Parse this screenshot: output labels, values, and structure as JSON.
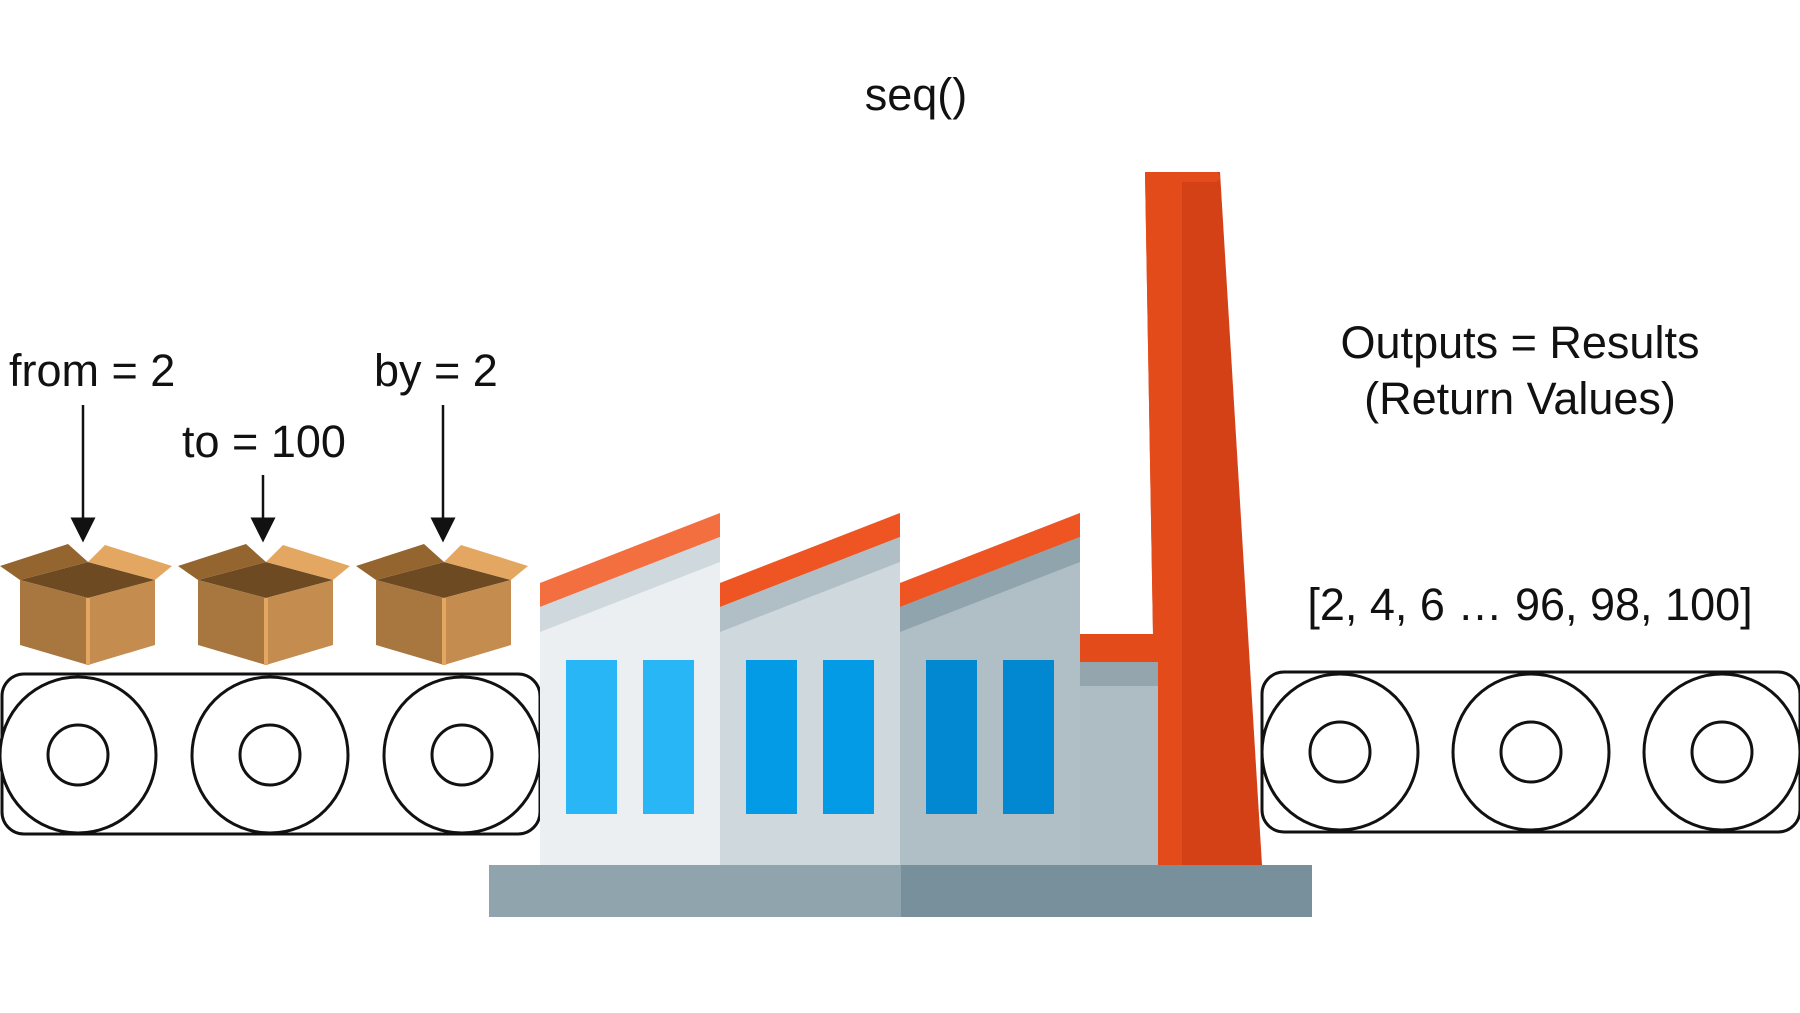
{
  "title": "seq()",
  "inputs": {
    "from_label": "from = 2",
    "to_label": "to = 100",
    "by_label": "by = 2"
  },
  "outputs": {
    "heading_line1": "Outputs = Results",
    "heading_line2": "(Return Values)",
    "result_sequence": "[2, 4, 6 … 96, 98, 100]"
  },
  "colors": {
    "box_brown": "#a8773f",
    "chimney_orange": "#e04a1b",
    "roof_orange": "#f0572a",
    "window_blue": "#1ea3e6",
    "base_gray": "#8fa2ad"
  },
  "icons": [
    "cardboard-box-icon",
    "conveyor-belt-icon",
    "factory-icon"
  ]
}
